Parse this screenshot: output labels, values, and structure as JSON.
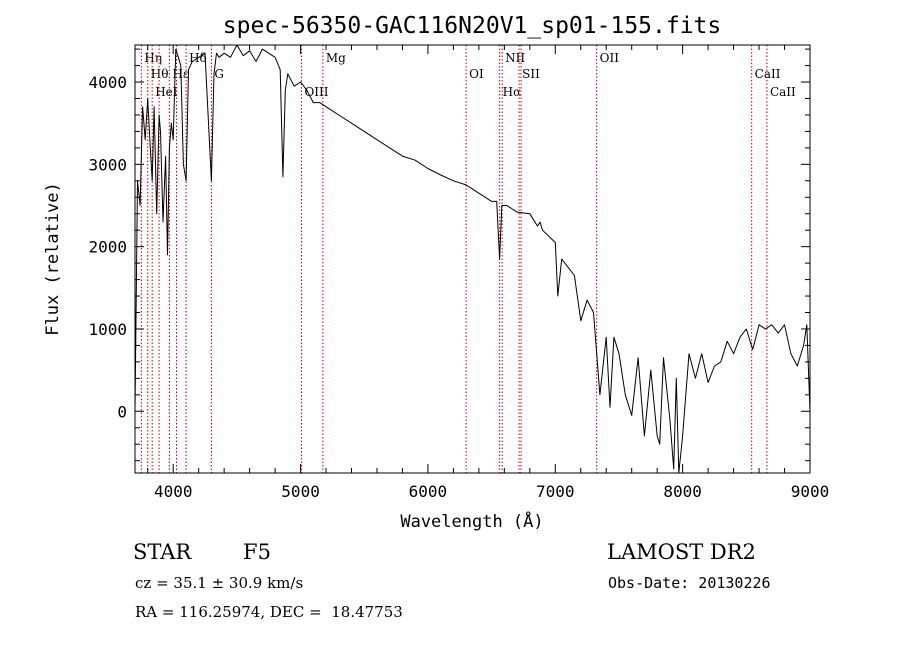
{
  "chart_data": {
    "type": "line",
    "title": "spec-56350-GAC116N20V1_sp01-155.fits",
    "xlabel": "Wavelength (Å)",
    "ylabel": "Flux (relative)",
    "xlim": [
      3700,
      9000
    ],
    "ylim": [
      -750,
      4450
    ],
    "xticks": [
      4000,
      5000,
      6000,
      7000,
      8000,
      9000
    ],
    "yticks": [
      0,
      1000,
      2000,
      3000,
      4000
    ],
    "line_color": "#000000",
    "marker_color": "#cc0000",
    "series": [
      {
        "x": [
          3700,
          3720,
          3740,
          3760,
          3780,
          3800,
          3820,
          3835,
          3850,
          3870,
          3889,
          3900,
          3920,
          3940,
          3955,
          3970,
          3985,
          4000,
          4020,
          4040,
          4060,
          4080,
          4101,
          4120,
          4150,
          4200,
          4250,
          4300,
          4320,
          4340,
          4360,
          4400,
          4450,
          4500,
          4550,
          4600,
          4650,
          4700,
          4750,
          4800,
          4840,
          4861,
          4880,
          4900,
          4950,
          5000,
          5050,
          5100,
          5150,
          5200,
          5300,
          5400,
          5500,
          5600,
          5700,
          5800,
          5900,
          6000,
          6100,
          6200,
          6300,
          6400,
          6500,
          6540,
          6563,
          6580,
          6620,
          6700,
          6800,
          6860,
          6880,
          6900,
          7000,
          7020,
          7050,
          7100,
          7150,
          7200,
          7250,
          7300,
          7350,
          7400,
          7430,
          7460,
          7500,
          7550,
          7600,
          7650,
          7700,
          7750,
          7800,
          7820,
          7850,
          7900,
          7930,
          7950,
          7970,
          8000,
          8050,
          8100,
          8150,
          8200,
          8250,
          8300,
          8350,
          8400,
          8450,
          8500,
          8550,
          8600,
          8650,
          8700,
          8750,
          8800,
          8850,
          8900,
          8950,
          8975,
          9000
        ],
        "y": [
          0,
          2800,
          2500,
          3700,
          3300,
          3800,
          3200,
          2800,
          3700,
          2400,
          3600,
          3400,
          2300,
          3100,
          1900,
          3200,
          3500,
          3300,
          4400,
          4300,
          4200,
          3000,
          2800,
          4150,
          4250,
          4300,
          4350,
          2800,
          4100,
          4350,
          4300,
          4350,
          4300,
          4450,
          4320,
          4380,
          4250,
          4400,
          4350,
          4300,
          4150,
          2850,
          3900,
          4100,
          3950,
          4000,
          3900,
          3750,
          3750,
          3700,
          3600,
          3500,
          3400,
          3300,
          3200,
          3100,
          3050,
          2950,
          2870,
          2800,
          2750,
          2650,
          2550,
          2550,
          1850,
          2500,
          2500,
          2420,
          2400,
          2250,
          2300,
          2200,
          2050,
          1400,
          1850,
          1750,
          1650,
          1100,
          1350,
          1200,
          200,
          900,
          50,
          900,
          700,
          200,
          -50,
          650,
          -300,
          500,
          -300,
          -400,
          650,
          -100,
          -700,
          400,
          -750,
          -300,
          700,
          400,
          700,
          350,
          550,
          600,
          850,
          700,
          900,
          1000,
          750,
          1050,
          1000,
          1050,
          950,
          1050,
          700,
          550,
          800,
          1050,
          0
        ]
      }
    ],
    "lines": [
      {
        "x": 3750,
        "label": "Hη"
      },
      {
        "x": 3800,
        "label": "Hθ"
      },
      {
        "x": 3835,
        "label": "HeI"
      },
      {
        "x": 3889,
        "label": ""
      },
      {
        "x": 3970,
        "label": "Hε"
      },
      {
        "x": 4026,
        "label": ""
      },
      {
        "x": 4101,
        "label": "Hδ"
      },
      {
        "x": 4300,
        "label": "G"
      },
      {
        "x": 5007,
        "label": "OIII"
      },
      {
        "x": 5175,
        "label": "Mg"
      },
      {
        "x": 6300,
        "label": "OI"
      },
      {
        "x": 6563,
        "label": "Hα"
      },
      {
        "x": 6583,
        "label": "NII"
      },
      {
        "x": 6716,
        "label": "SII"
      },
      {
        "x": 6731,
        "label": ""
      },
      {
        "x": 7325,
        "label": "OII"
      },
      {
        "x": 8542,
        "label": "CaII"
      },
      {
        "x": 8662,
        "label": "CaII"
      }
    ]
  },
  "info": {
    "object_class": "STAR",
    "subclass": "F5",
    "survey": "LAMOST DR2",
    "cz": "cz = 35.1 ± 30.9 km/s",
    "obs_date": "Obs-Date: 20130226",
    "coords": "RA = 116.25974, DEC =  18.47753"
  }
}
